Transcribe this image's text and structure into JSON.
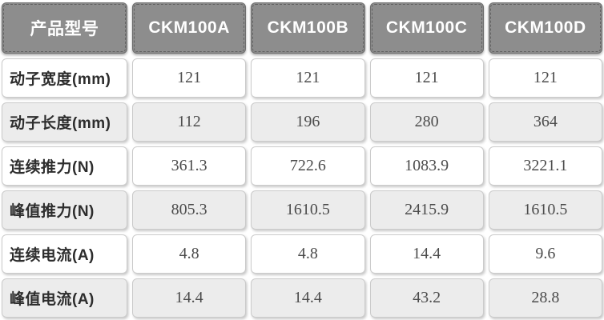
{
  "chart_data": {
    "type": "table",
    "header_label": "产品型号",
    "models": [
      "CKM100A",
      "CKM100B",
      "CKM100C",
      "CKM100D"
    ],
    "rows": [
      {
        "label": "动子宽度(mm)",
        "values": [
          "121",
          "121",
          "121",
          "121"
        ]
      },
      {
        "label": "动子长度(mm)",
        "values": [
          "112",
          "196",
          "280",
          "364"
        ]
      },
      {
        "label": "连续推力(N)",
        "values": [
          "361.3",
          "722.6",
          "1083.9",
          "3221.1"
        ]
      },
      {
        "label": "峰值推力(N)",
        "values": [
          "805.3",
          "1610.5",
          "2415.9",
          "1610.5"
        ]
      },
      {
        "label": "连续电流(A)",
        "values": [
          "4.8",
          "4.8",
          "14.4",
          "9.6"
        ]
      },
      {
        "label": "峰值电流(A)",
        "values": [
          "14.4",
          "14.4",
          "43.2",
          "28.8"
        ]
      }
    ],
    "layout_hints": {
      "header_position": "top",
      "label_column_position": "left",
      "alternating_rows": true
    }
  },
  "colors": {
    "header_bg": "#8d8d8d",
    "header_text": "#ffffff",
    "row_bg": "#ffffff",
    "row_alt_bg": "#ececec",
    "label_text": "#2d2d2d",
    "value_text": "#4c4c4c",
    "cell_border": "#cbcbcb",
    "page_bg": "#ffffff"
  }
}
